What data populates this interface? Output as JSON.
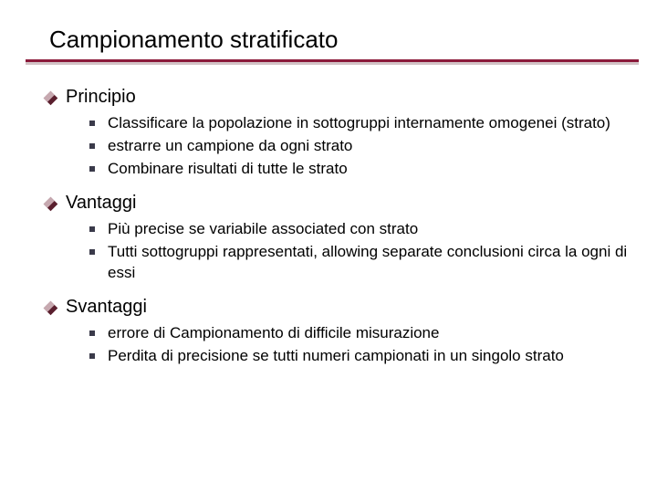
{
  "colors": {
    "title_text": "#000000",
    "rule_primary": "#8b1a3a",
    "rule_shadow": "#d2c3c6",
    "diamond_dark": "#5a1f2e",
    "diamond_light": "#c7a9b0",
    "square_bullet": "#3a3a4a",
    "background": "#ffffff",
    "body_text": "#000000"
  },
  "typography": {
    "title_fontsize": 26,
    "lvl1_fontsize": 20,
    "lvl2_fontsize": 17,
    "font_family": "Verdana"
  },
  "title": "Campionamento stratificato",
  "sections": [
    {
      "heading": "Principio",
      "items": [
        "Classificare la popolazione in sottogruppi internamente omogenei (strato)",
        "estrarre un campione da ogni strato",
        "Combinare risultati di tutte le strato"
      ]
    },
    {
      "heading": "Vantaggi",
      "items": [
        "Più  precise se variabile associated con strato",
        "Tutti sottogruppi rappresentati, allowing separate conclusioni circa la ogni di essi"
      ]
    },
    {
      "heading": "Svantaggi",
      "items": [
        " errore di Campionamento di difficile misurazione",
        "Perdita di precisione se tutti numeri campionati in un singolo strato"
      ]
    }
  ]
}
